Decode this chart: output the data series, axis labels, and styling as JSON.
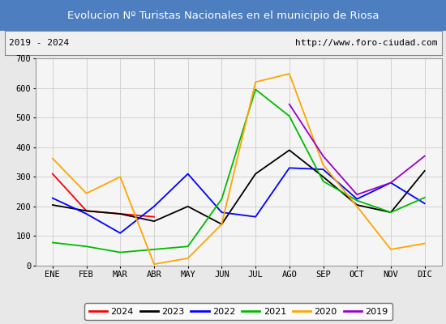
{
  "title": "Evolucion Nº Turistas Nacionales en el municipio de Riosa",
  "subtitle_left": "2019 - 2024",
  "subtitle_right": "http://www.foro-ciudad.com",
  "title_bg_color": "#4d7ebf",
  "title_text_color": "#ffffff",
  "months": [
    "ENE",
    "FEB",
    "MAR",
    "ABR",
    "MAY",
    "JUN",
    "JUL",
    "AGO",
    "SEP",
    "OCT",
    "NOV",
    "DIC"
  ],
  "ylim": [
    0,
    700
  ],
  "yticks": [
    0,
    100,
    200,
    300,
    400,
    500,
    600,
    700
  ],
  "series": {
    "2024": {
      "color": "#ff0000",
      "values": [
        310,
        185,
        175,
        165,
        null,
        null,
        null,
        null,
        null,
        null,
        null,
        null
      ]
    },
    "2023": {
      "color": "#000000",
      "values": [
        205,
        185,
        175,
        150,
        200,
        140,
        310,
        390,
        300,
        205,
        180,
        320
      ]
    },
    "2022": {
      "color": "#0000ff",
      "values": [
        228,
        175,
        110,
        200,
        310,
        180,
        165,
        330,
        325,
        225,
        280,
        210
      ]
    },
    "2021": {
      "color": "#00bb00",
      "values": [
        78,
        65,
        45,
        55,
        65,
        225,
        595,
        505,
        285,
        220,
        180,
        230
      ]
    },
    "2020": {
      "color": "#ffa500",
      "values": [
        362,
        244,
        300,
        5,
        25,
        140,
        620,
        648,
        340,
        200,
        55,
        75
      ]
    },
    "2019": {
      "color": "#9900cc",
      "values": [
        null,
        null,
        null,
        null,
        null,
        null,
        null,
        545,
        370,
        240,
        280,
        370
      ]
    }
  },
  "legend_order": [
    "2024",
    "2023",
    "2022",
    "2021",
    "2020",
    "2019"
  ],
  "bg_color": "#e8e8e8",
  "plot_bg_color": "#f5f5f5",
  "grid_color": "#cccccc",
  "subtitle_box_color": "#f0f0f0"
}
